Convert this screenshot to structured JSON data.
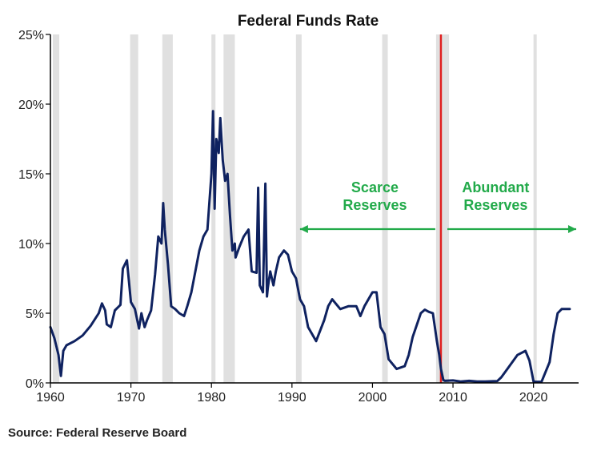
{
  "chart_data": {
    "type": "line",
    "title": "Federal Funds Rate",
    "source": "Source: Federal Reserve Board",
    "xlim": [
      1960,
      2025.6
    ],
    "ylim": [
      0,
      25
    ],
    "x_ticks": [
      1960,
      1970,
      1980,
      1990,
      2000,
      2010,
      2020
    ],
    "x_tick_labels": [
      "1960",
      "1970",
      "1980",
      "1990",
      "2000",
      "2010",
      "2020"
    ],
    "y_ticks": [
      0,
      5,
      10,
      15,
      20,
      25
    ],
    "y_tick_labels": [
      "0%",
      "5%",
      "10%",
      "15%",
      "20%",
      "25%"
    ],
    "grid": false,
    "colors": {
      "line": "#0f2260",
      "recession": "#e0e0e0",
      "divider": "#e02020",
      "annotation": "#22aa4a",
      "axis": "#000000"
    },
    "recessions": [
      [
        1960.3,
        1961.1
      ],
      [
        1969.9,
        1970.9
      ],
      [
        1973.9,
        1975.2
      ],
      [
        1980.0,
        1980.5
      ],
      [
        1981.5,
        1982.9
      ],
      [
        1990.5,
        1991.2
      ],
      [
        2001.2,
        2001.9
      ],
      [
        2007.9,
        2009.5
      ],
      [
        2020.0,
        2020.4
      ]
    ],
    "divider_x": 2008.5,
    "annotations": [
      {
        "lines": [
          "Scarce",
          "Reserves"
        ],
        "arrow": "left",
        "x_text": 2000.3,
        "arrow_from": 2007.8,
        "arrow_to": 1991.0,
        "y": 12.3
      },
      {
        "lines": [
          "Abundant",
          "Reserves"
        ],
        "arrow": "right",
        "x_text": 2015.3,
        "arrow_from": 2009.3,
        "arrow_to": 2025.3,
        "y": 12.3
      }
    ],
    "series": [
      {
        "x": [
          1960,
          1960.5,
          1961,
          1961.3,
          1961.6,
          1962,
          1963,
          1964,
          1965,
          1966,
          1966.4,
          1966.8,
          1967,
          1967.5,
          1968,
          1968.7,
          1969,
          1969.5,
          1970,
          1970.5,
          1971,
          1971.3,
          1971.7,
          1972,
          1972.5,
          1973,
          1973.4,
          1973.8,
          1974,
          1974.2,
          1974.6,
          1975,
          1975.5,
          1976,
          1976.6,
          1977,
          1977.5,
          1978,
          1978.5,
          1979,
          1979.5,
          1980,
          1980.2,
          1980.4,
          1980.6,
          1980.9,
          1981.1,
          1981.4,
          1981.7,
          1982,
          1982.3,
          1982.6,
          1982.9,
          1983,
          1983.5,
          1984,
          1984.6,
          1985,
          1985.6,
          1985.8,
          1986,
          1986.4,
          1986.7,
          1986.9,
          1987,
          1987.3,
          1987.7,
          1988,
          1988.4,
          1989,
          1989.5,
          1990,
          1990.5,
          1991,
          1991.5,
          1992,
          1993,
          1994,
          1994.5,
          1995,
          1996,
          1997,
          1998,
          1998.5,
          1999,
          2000,
          2000.5,
          2001,
          2001.5,
          2002,
          2003,
          2004,
          2004.5,
          2005,
          2006,
          2006.5,
          2007,
          2007.5,
          2008,
          2008.3,
          2008.5,
          2008.8,
          2009,
          2010,
          2011,
          2012,
          2013,
          2014,
          2015,
          2015.5,
          2016,
          2017,
          2018,
          2019,
          2019.5,
          2020,
          2020.3,
          2021,
          2022,
          2022.5,
          2023,
          2023.5,
          2024,
          2024.5
        ],
        "values": [
          4.0,
          3.2,
          2.0,
          0.5,
          2.3,
          2.7,
          3.0,
          3.4,
          4.1,
          5.0,
          5.7,
          5.2,
          4.2,
          4.0,
          5.2,
          5.6,
          8.2,
          8.8,
          5.8,
          5.3,
          3.9,
          5.0,
          4.0,
          4.5,
          5.2,
          7.8,
          10.5,
          10.0,
          12.9,
          11.0,
          8.5,
          5.5,
          5.3,
          5.0,
          4.8,
          5.5,
          6.5,
          8.0,
          9.5,
          10.5,
          11.0,
          15.0,
          19.5,
          12.5,
          17.5,
          16.5,
          19.0,
          16.0,
          14.5,
          15.0,
          12.0,
          9.5,
          10.0,
          9.0,
          9.8,
          10.5,
          11.0,
          8.0,
          7.9,
          14.0,
          7.0,
          6.5,
          14.3,
          6.2,
          6.8,
          8.0,
          7.0,
          8.0,
          9.0,
          9.5,
          9.2,
          8.0,
          7.5,
          6.0,
          5.5,
          4.0,
          3.0,
          4.5,
          5.5,
          6.0,
          5.3,
          5.5,
          5.5,
          4.8,
          5.5,
          6.5,
          6.5,
          4.0,
          3.5,
          1.7,
          1.0,
          1.2,
          2.0,
          3.3,
          5.0,
          5.25,
          5.1,
          5.0,
          3.0,
          2.0,
          1.0,
          0.2,
          0.15,
          0.18,
          0.1,
          0.15,
          0.1,
          0.1,
          0.12,
          0.13,
          0.4,
          1.2,
          2.0,
          2.3,
          1.6,
          0.1,
          0.08,
          0.08,
          1.5,
          3.5,
          5.0,
          5.3,
          5.3,
          5.3
        ]
      }
    ]
  }
}
